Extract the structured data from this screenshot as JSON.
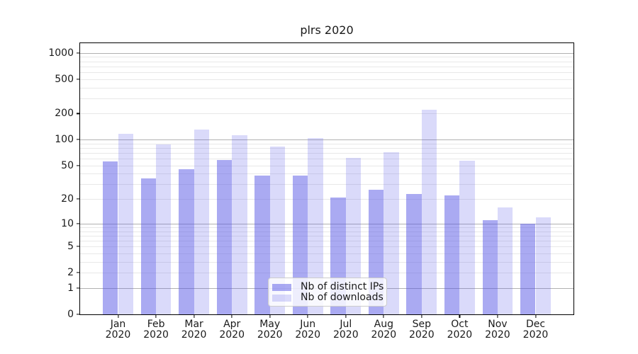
{
  "title": "plrs 2020",
  "chart_data": {
    "type": "bar",
    "title": "plrs 2020",
    "x_categories": [
      "Jan",
      "Feb",
      "Mar",
      "Apr",
      "May",
      "Jun",
      "Jul",
      "Aug",
      "Sep",
      "Oct",
      "Nov",
      "Dec"
    ],
    "x_year_label": "2020",
    "series": [
      {
        "name": "Nb of distinct IPs",
        "values": [
          56,
          35,
          45,
          58,
          38,
          38,
          21,
          26,
          23,
          22,
          11,
          10
        ]
      },
      {
        "name": "Nb of downloads",
        "values": [
          116,
          88,
          130,
          113,
          84,
          105,
          62,
          71,
          222,
          57,
          16,
          12
        ]
      }
    ],
    "yscale": "log1p",
    "ylim": [
      0,
      1290
    ],
    "yticks": [
      0,
      1,
      2,
      5,
      10,
      20,
      50,
      100,
      200,
      500,
      1000
    ],
    "major_grid": [
      1,
      10,
      100,
      1000
    ],
    "minor_grid_decades": [
      1,
      10,
      100
    ],
    "grid": true,
    "legend_position": "lower-center",
    "bar_width_fraction": 0.4
  },
  "legend": {
    "items": [
      {
        "label": "Nb of distinct IPs",
        "swatch_color": "rgba(85,85,230,0.5)"
      },
      {
        "label": "Nb of downloads",
        "swatch_color": "rgba(85,85,230,0.22)"
      }
    ]
  },
  "colors": {
    "background": "#ffffff",
    "spine": "#000000",
    "bar_distinct_ips": "#a9a9f4",
    "bar_downloads": "#d9d9f9",
    "bar_base_rgba": [
      "rgba(85,85,230,0.5)",
      "rgba(85,85,230,0.22)"
    ],
    "major_grid": "#b1b1b1",
    "minor_grid": "#e8e8e8",
    "text": "#1a1a1a"
  }
}
